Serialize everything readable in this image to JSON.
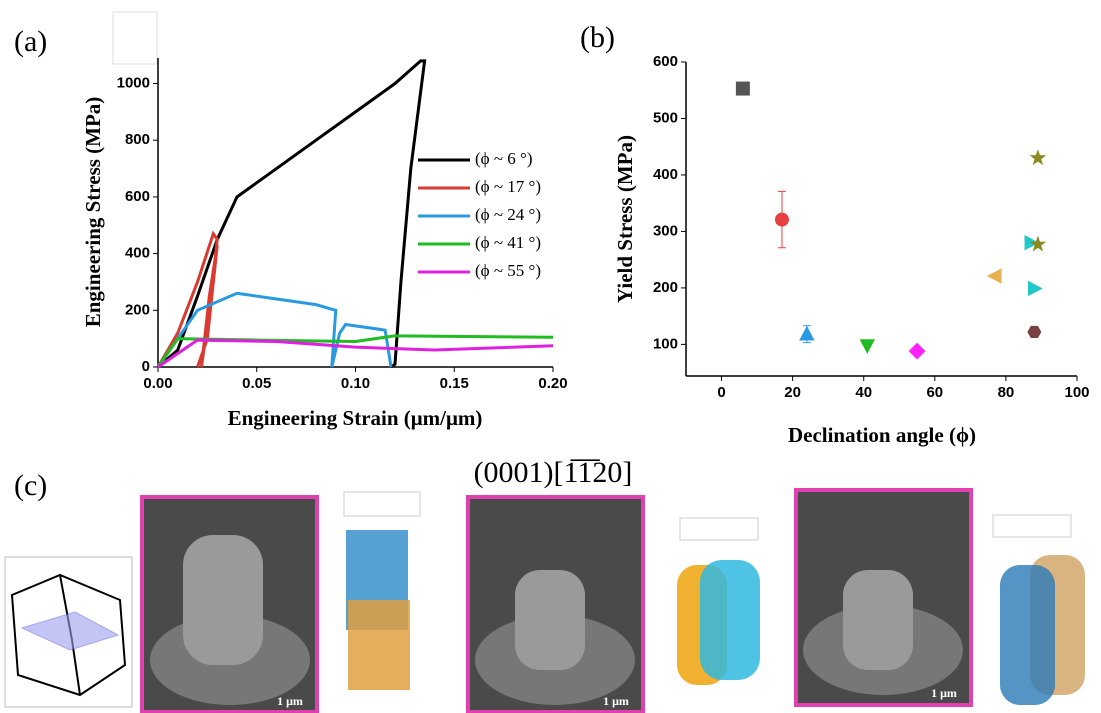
{
  "panel_labels": [
    "(a)",
    "(b)",
    "(c)"
  ],
  "chart_data": [
    {
      "type": "line",
      "xlabel": "Engineering Strain (μm/μm)",
      "ylabel": "Engineering Stress (MPa)",
      "xlim": [
        0,
        0.2
      ],
      "ylim": [
        0,
        1090
      ],
      "xticks": [
        {
          "value": 0,
          "label": "0.00"
        },
        {
          "value": 0.05,
          "label": "0.05"
        },
        {
          "value": 0.1,
          "label": "0.10"
        },
        {
          "value": 0.15,
          "label": "0.15"
        },
        {
          "value": 0.2,
          "label": "0.20"
        }
      ],
      "yticks": [
        0,
        200,
        400,
        600,
        800,
        1000
      ],
      "legend": "right",
      "series": [
        {
          "name": "(ϕ ~ 6 °)",
          "color": "#000000",
          "x": [
            0,
            0.01,
            0.02,
            0.03,
            0.04,
            0.06,
            0.08,
            0.1,
            0.12,
            0.133,
            0.135,
            0.128,
            0.123,
            0.12,
            0.118
          ],
          "values": [
            0,
            60,
            250,
            450,
            600,
            700,
            800,
            900,
            1000,
            1080,
            1080,
            700,
            300,
            10,
            0
          ]
        },
        {
          "name": "(ϕ ~ 17 °)",
          "color": "#d93a32",
          "x": [
            0,
            0.01,
            0.02,
            0.028,
            0.03,
            0.026,
            0.022,
            0.026,
            0.03,
            0.025,
            0.02
          ],
          "values": [
            0,
            120,
            300,
            470,
            450,
            200,
            0,
            250,
            430,
            100,
            0
          ]
        },
        {
          "name": "(ϕ ~ 24 °)",
          "color": "#2a9ae0",
          "x": [
            0,
            0.02,
            0.04,
            0.06,
            0.08,
            0.09,
            0.088,
            0.092,
            0.095,
            0.115,
            0.118
          ],
          "values": [
            0,
            200,
            260,
            240,
            220,
            200,
            0,
            120,
            150,
            130,
            0
          ]
        },
        {
          "name": "(ϕ ~ 41 °)",
          "color": "#22bb22",
          "x": [
            0,
            0.01,
            0.05,
            0.1,
            0.12,
            0.2
          ],
          "values": [
            0,
            100,
            95,
            90,
            110,
            105
          ]
        },
        {
          "name": "(ϕ ~ 55 °)",
          "color": "#e020e0",
          "x": [
            0,
            0.02,
            0.06,
            0.1,
            0.14,
            0.2
          ],
          "values": [
            0,
            95,
            90,
            70,
            60,
            75
          ]
        }
      ]
    },
    {
      "type": "scatter",
      "xlabel": "Declination angle (ϕ)",
      "ylabel": "Yield Stress (MPa)",
      "xlim": [
        -10,
        100
      ],
      "ylim": [
        44,
        600
      ],
      "xticks": [
        0,
        20,
        40,
        60,
        80,
        100
      ],
      "yticks": [
        100,
        200,
        300,
        400,
        500,
        600
      ],
      "series": [
        {
          "marker": "square",
          "color": "#555555",
          "x": [
            6
          ],
          "values": [
            553
          ]
        },
        {
          "marker": "circle",
          "color": "#e84040",
          "x": [
            17
          ],
          "values": [
            321
          ],
          "errors": [
            50
          ]
        },
        {
          "marker": "triangle-up",
          "color": "#2a9ae0",
          "x": [
            24
          ],
          "values": [
            118
          ],
          "errors": [
            15
          ]
        },
        {
          "marker": "triangle-down",
          "color": "#22bb22",
          "x": [
            41
          ],
          "values": [
            98
          ]
        },
        {
          "marker": "diamond",
          "color": "#ff20ff",
          "x": [
            55
          ],
          "values": [
            88
          ]
        },
        {
          "marker": "triangle-left",
          "color": "#e8b050",
          "x": [
            77
          ],
          "values": [
            221
          ]
        },
        {
          "marker": "triangle-right",
          "color": "#20c8c8",
          "x": [
            87,
            88
          ],
          "values": [
            280,
            199
          ]
        },
        {
          "marker": "star",
          "color": "#8a8a20",
          "x": [
            89,
            89
          ],
          "values": [
            430,
            277
          ]
        },
        {
          "marker": "hexagon",
          "color": "#7a4040",
          "x": [
            88
          ],
          "values": [
            122
          ]
        }
      ]
    }
  ],
  "orientation_label": "(0001)[1̅1̅20]",
  "scale_bars": [
    "1 μm",
    "1 μm",
    "1 μm"
  ]
}
